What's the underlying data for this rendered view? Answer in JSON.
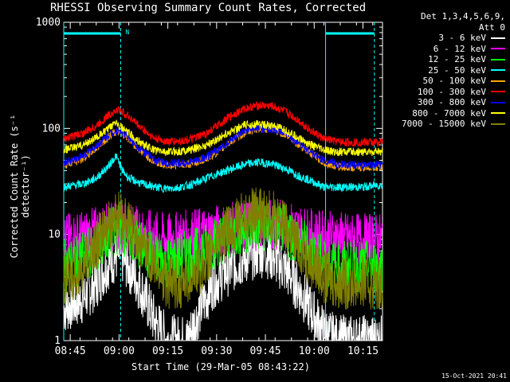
{
  "chart_data": {
    "type": "line",
    "title": "RHESSI Observing Summary Count Rates, Corrected",
    "ylabel": "Corrected Count Rate (s⁻¹ detector⁻¹)",
    "xlabel": "Start Time (29-Mar-05 08:43:22)",
    "y_scale": "log",
    "ylim": [
      1,
      1000
    ],
    "y_ticks": [
      "1",
      "10",
      "100",
      "1000"
    ],
    "x_range_min": [
      0,
      98
    ],
    "x_ticks_min": [
      2,
      17,
      32,
      47,
      62,
      77,
      92
    ],
    "x_tick_labels": [
      "08:45",
      "09:00",
      "09:15",
      "09:30",
      "09:45",
      "10:00",
      "10:15"
    ],
    "legend_header": [
      "Det 1,3,4,5,6,9,",
      "Att 0"
    ],
    "timestamp": "15-Oct-2021 20:41",
    "flag_label": "N",
    "night_boundaries_min": [
      0,
      17.5,
      80.5,
      95.5
    ],
    "series": [
      {
        "name": "3 - 6 keV",
        "color": "#ffffff",
        "x": [
          0,
          6,
          10,
          14,
          17,
          20,
          24,
          28,
          32,
          36,
          38,
          42,
          46,
          50,
          54,
          58,
          62,
          66,
          70,
          74,
          78,
          80,
          84,
          88,
          92,
          96,
          98
        ],
        "y": [
          2,
          2.5,
          3.5,
          5.5,
          6.5,
          5,
          3,
          1.5,
          1,
          1,
          1,
          2,
          3.5,
          4.5,
          5.5,
          6.5,
          7,
          5.5,
          4,
          2.5,
          1.5,
          1.2,
          1,
          1,
          1,
          1,
          1
        ]
      },
      {
        "name": "6 - 12 keV",
        "color": "#ff00ff",
        "x": [
          0,
          6,
          10,
          14,
          17,
          20,
          24,
          28,
          32,
          36,
          40,
          44,
          48,
          52,
          56,
          60,
          64,
          68,
          72,
          76,
          80,
          84,
          88,
          92,
          96,
          98
        ],
        "y": [
          9,
          9.5,
          10.5,
          11.5,
          12,
          11.5,
          10,
          9.5,
          9,
          9.5,
          10,
          10.5,
          11,
          11.5,
          12,
          12.5,
          12.5,
          12,
          11,
          10,
          9.5,
          9.5,
          9,
          9,
          9,
          9
        ]
      },
      {
        "name": "12 - 25 keV",
        "color": "#00ff00",
        "x": [
          0,
          6,
          10,
          14,
          17,
          20,
          24,
          28,
          32,
          36,
          40,
          44,
          48,
          52,
          56,
          60,
          64,
          68,
          72,
          76,
          80,
          84,
          88,
          92,
          96,
          98
        ],
        "y": [
          5,
          6,
          7.5,
          10,
          11.5,
          10,
          7.5,
          6,
          5.5,
          6,
          6.5,
          7.5,
          9,
          10.5,
          11.5,
          12,
          12,
          11,
          9,
          7,
          5.5,
          5,
          5,
          5,
          5,
          5
        ]
      },
      {
        "name": "25 - 50 keV",
        "color": "#00ffff",
        "x": [
          0,
          6,
          10,
          14,
          16,
          17,
          18,
          20,
          24,
          28,
          32,
          36,
          40,
          44,
          48,
          52,
          56,
          60,
          64,
          68,
          72,
          76,
          80,
          84,
          88,
          92,
          96,
          98
        ],
        "y": [
          28,
          30,
          34,
          45,
          55,
          48,
          40,
          34,
          30,
          28,
          27,
          28,
          30,
          34,
          38,
          42,
          46,
          48,
          46,
          42,
          36,
          32,
          28,
          28,
          28,
          28,
          29,
          29
        ]
      },
      {
        "name": "50 - 100 keV",
        "color": "#ffa500",
        "x": [
          0,
          6,
          10,
          14,
          17,
          20,
          24,
          28,
          32,
          36,
          40,
          44,
          48,
          52,
          56,
          60,
          64,
          68,
          72,
          76,
          80,
          84,
          88,
          92,
          96,
          98
        ],
        "y": [
          45,
          52,
          65,
          85,
          95,
          80,
          60,
          48,
          45,
          45,
          47,
          52,
          62,
          78,
          92,
          100,
          98,
          88,
          72,
          58,
          48,
          44,
          43,
          43,
          43,
          43
        ]
      },
      {
        "name": "100 - 300 keV",
        "color": "#ff0000",
        "x": [
          0,
          6,
          10,
          14,
          17,
          20,
          24,
          28,
          32,
          36,
          40,
          44,
          48,
          52,
          56,
          60,
          64,
          68,
          72,
          76,
          80,
          84,
          88,
          92,
          96,
          98
        ],
        "y": [
          80,
          90,
          105,
          135,
          150,
          130,
          100,
          80,
          75,
          76,
          80,
          90,
          110,
          135,
          155,
          165,
          162,
          145,
          120,
          95,
          80,
          75,
          74,
          74,
          74,
          74
        ]
      },
      {
        "name": "300 - 800 keV",
        "color": "#0000ff",
        "x": [
          0,
          6,
          10,
          14,
          17,
          20,
          24,
          28,
          32,
          36,
          40,
          44,
          48,
          52,
          56,
          60,
          64,
          68,
          72,
          76,
          80,
          84,
          88,
          92,
          96,
          98
        ],
        "y": [
          47,
          55,
          68,
          88,
          97,
          82,
          62,
          50,
          47,
          47,
          49,
          54,
          64,
          80,
          94,
          100,
          98,
          90,
          74,
          60,
          50,
          46,
          45,
          45,
          45,
          45
        ]
      },
      {
        "name": "800 - 7000 keV",
        "color": "#ffff00",
        "x": [
          0,
          6,
          10,
          14,
          16,
          17,
          18,
          20,
          24,
          28,
          32,
          36,
          40,
          44,
          48,
          52,
          56,
          60,
          64,
          68,
          72,
          76,
          80,
          84,
          88,
          92,
          96,
          98
        ],
        "y": [
          62,
          70,
          82,
          100,
          118,
          108,
          100,
          90,
          72,
          62,
          60,
          61,
          64,
          70,
          82,
          96,
          108,
          110,
          106,
          96,
          82,
          70,
          62,
          60,
          60,
          60,
          60,
          60
        ]
      },
      {
        "name": "7000 - 15000 keV",
        "color": "#808000",
        "x": [
          0,
          6,
          10,
          14,
          17,
          20,
          24,
          28,
          32,
          36,
          40,
          44,
          48,
          52,
          56,
          60,
          64,
          68,
          72,
          76,
          80,
          84,
          88,
          92,
          96,
          98
        ],
        "y": [
          3.5,
          5,
          8,
          12,
          15,
          12,
          8,
          5,
          3.5,
          3.5,
          4,
          6,
          9,
          12,
          15,
          16,
          15,
          12,
          8,
          5.5,
          4,
          3.5,
          3.5,
          3.5,
          3.5,
          3.5
        ]
      }
    ]
  }
}
